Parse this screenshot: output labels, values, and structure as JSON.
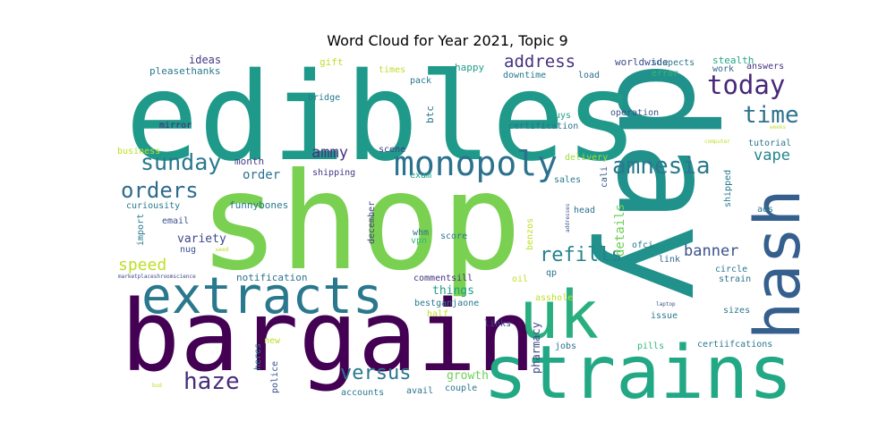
{
  "chart_data": {
    "type": "wordcloud",
    "title": "Word Cloud for Year 2021, Topic 9",
    "colormap": "viridis",
    "words": [
      {
        "text": "shop",
        "weight": 1.0,
        "color": "#7ad151",
        "orientation": "horizontal"
      },
      {
        "text": "day",
        "weight": 0.97,
        "color": "#21918c",
        "orientation": "vertical"
      },
      {
        "text": "edibles",
        "weight": 0.92,
        "color": "#1f9a8a",
        "orientation": "horizontal"
      },
      {
        "text": "bargain",
        "weight": 0.82,
        "color": "#440154",
        "orientation": "horizontal"
      },
      {
        "text": "strains",
        "weight": 0.7,
        "color": "#22a884",
        "orientation": "horizontal"
      },
      {
        "text": "uk",
        "weight": 0.64,
        "color": "#29af7f",
        "orientation": "horizontal"
      },
      {
        "text": "hash",
        "weight": 0.58,
        "color": "#355f8d",
        "orientation": "vertical"
      },
      {
        "text": "extracts",
        "weight": 0.5,
        "color": "#2a788e",
        "orientation": "horizontal"
      },
      {
        "text": "monopoly",
        "weight": 0.34,
        "color": "#2c728e",
        "orientation": "horizontal"
      },
      {
        "text": "amnesia",
        "weight": 0.24,
        "color": "#2a788e",
        "orientation": "horizontal"
      },
      {
        "text": "today",
        "weight": 0.26,
        "color": "#482878",
        "orientation": "horizontal"
      },
      {
        "text": "time",
        "weight": 0.24,
        "color": "#2c728e",
        "orientation": "horizontal"
      },
      {
        "text": "sunday",
        "weight": 0.22,
        "color": "#2a788e",
        "orientation": "horizontal"
      },
      {
        "text": "orders",
        "weight": 0.2,
        "color": "#2f6b8e",
        "orientation": "horizontal"
      },
      {
        "text": "haze",
        "weight": 0.22,
        "color": "#472d7b",
        "orientation": "horizontal"
      },
      {
        "text": "refills",
        "weight": 0.18,
        "color": "#26828e",
        "orientation": "horizontal"
      },
      {
        "text": "versus",
        "weight": 0.18,
        "color": "#2a788e",
        "orientation": "horizontal"
      },
      {
        "text": "address",
        "weight": 0.17,
        "color": "#46327e",
        "orientation": "horizontal"
      },
      {
        "text": "speed",
        "weight": 0.16,
        "color": "#bddf26",
        "orientation": "horizontal"
      },
      {
        "text": "banner",
        "weight": 0.15,
        "color": "#3b528b",
        "orientation": "horizontal"
      },
      {
        "text": "vape",
        "weight": 0.14,
        "color": "#25848e",
        "orientation": "horizontal"
      },
      {
        "text": "ammy",
        "weight": 0.14,
        "color": "#46337f",
        "orientation": "horizontal"
      },
      {
        "text": "details",
        "weight": 0.12,
        "color": "#6ece58",
        "orientation": "vertical"
      },
      {
        "text": "things",
        "weight": 0.11,
        "color": "#1f9e89",
        "orientation": "horizontal"
      },
      {
        "text": "order",
        "weight": 0.11,
        "color": "#2c728e",
        "orientation": "horizontal"
      },
      {
        "text": "growth",
        "weight": 0.1,
        "color": "#6ece58",
        "orientation": "horizontal"
      },
      {
        "text": "pharmacy",
        "weight": 0.09,
        "color": "#3e4989",
        "orientation": "vertical"
      },
      {
        "text": "month",
        "weight": 0.09,
        "color": "#433e85",
        "orientation": "horizontal"
      },
      {
        "text": "variety",
        "weight": 0.09,
        "color": "#3e4989",
        "orientation": "horizontal"
      },
      {
        "text": "ideas",
        "weight": 0.09,
        "color": "#453781",
        "orientation": "horizontal"
      },
      {
        "text": "funnybones",
        "weight": 0.08,
        "color": "#2a788e",
        "orientation": "horizontal"
      },
      {
        "text": "notification",
        "weight": 0.08,
        "color": "#2c728e",
        "orientation": "horizontal"
      },
      {
        "text": "pleasethanks",
        "weight": 0.08,
        "color": "#2a788e",
        "orientation": "horizontal"
      },
      {
        "text": "gift",
        "weight": 0.08,
        "color": "#bddf26",
        "orientation": "horizontal"
      },
      {
        "text": "happy",
        "weight": 0.08,
        "color": "#1f9e89",
        "orientation": "horizontal"
      },
      {
        "text": "worldwide",
        "weight": 0.08,
        "color": "#3e4989",
        "orientation": "horizontal"
      },
      {
        "text": "suspects",
        "weight": 0.08,
        "color": "#2a788e",
        "orientation": "horizontal"
      },
      {
        "text": "stealth",
        "weight": 0.08,
        "color": "#22a884",
        "orientation": "horizontal"
      },
      {
        "text": "answers",
        "weight": 0.08,
        "color": "#46327e",
        "orientation": "horizontal"
      },
      {
        "text": "work",
        "weight": 0.08,
        "color": "#31688e",
        "orientation": "horizontal"
      },
      {
        "text": "error",
        "weight": 0.08,
        "color": "#35b779",
        "orientation": "horizontal"
      },
      {
        "text": "load",
        "weight": 0.08,
        "color": "#2c728e",
        "orientation": "horizontal"
      },
      {
        "text": "downtime",
        "weight": 0.08,
        "color": "#2a788e",
        "orientation": "horizontal"
      },
      {
        "text": "times",
        "weight": 0.08,
        "color": "#bddf26",
        "orientation": "horizontal"
      },
      {
        "text": "pack",
        "weight": 0.08,
        "color": "#2a788e",
        "orientation": "horizontal"
      },
      {
        "text": "bridge",
        "weight": 0.08,
        "color": "#2a788e",
        "orientation": "horizontal"
      },
      {
        "text": "mirror",
        "weight": 0.08,
        "color": "#482878",
        "orientation": "horizontal"
      },
      {
        "text": "btc",
        "weight": 0.08,
        "color": "#2a788e",
        "orientation": "vertical"
      },
      {
        "text": "operation",
        "weight": 0.08,
        "color": "#3b528b",
        "orientation": "horizontal"
      },
      {
        "text": "guys",
        "weight": 0.08,
        "color": "#1f9e89",
        "orientation": "horizontal"
      },
      {
        "text": "certification",
        "weight": 0.08,
        "color": "#2c728e",
        "orientation": "horizontal"
      },
      {
        "text": "tutorial",
        "weight": 0.08,
        "color": "#2a788e",
        "orientation": "horizontal"
      },
      {
        "text": "business",
        "weight": 0.07,
        "color": "#bddf26",
        "orientation": "horizontal"
      },
      {
        "text": "scene",
        "weight": 0.07,
        "color": "#433e85",
        "orientation": "horizontal"
      },
      {
        "text": "delivery",
        "weight": 0.07,
        "color": "#a0da39",
        "orientation": "horizontal"
      },
      {
        "text": "shipping",
        "weight": 0.07,
        "color": "#443983",
        "orientation": "horizontal"
      },
      {
        "text": "exam",
        "weight": 0.07,
        "color": "#1f9e89",
        "orientation": "horizontal"
      },
      {
        "text": "sales",
        "weight": 0.07,
        "color": "#2a788e",
        "orientation": "horizontal"
      },
      {
        "text": "cali",
        "weight": 0.07,
        "color": "#39568c",
        "orientation": "vertical"
      },
      {
        "text": "shipped",
        "weight": 0.07,
        "color": "#2a788e",
        "orientation": "vertical"
      },
      {
        "text": "curiousity",
        "weight": 0.07,
        "color": "#2a788e",
        "orientation": "horizontal"
      },
      {
        "text": "email",
        "weight": 0.07,
        "color": "#3b528b",
        "orientation": "horizontal"
      },
      {
        "text": "december",
        "weight": 0.07,
        "color": "#433e85",
        "orientation": "vertical"
      },
      {
        "text": "head",
        "weight": 0.07,
        "color": "#2c728e",
        "orientation": "horizontal"
      },
      {
        "text": "ads",
        "weight": 0.07,
        "color": "#2a788e",
        "orientation": "horizontal"
      },
      {
        "text": "import",
        "weight": 0.07,
        "color": "#2a788e",
        "orientation": "vertical"
      },
      {
        "text": "whm",
        "weight": 0.07,
        "color": "#2c728e",
        "orientation": "horizontal"
      },
      {
        "text": "vpn",
        "weight": 0.07,
        "color": "#35b779",
        "orientation": "horizontal"
      },
      {
        "text": "score",
        "weight": 0.07,
        "color": "#2a788e",
        "orientation": "horizontal"
      },
      {
        "text": "benzos",
        "weight": 0.07,
        "color": "#bddf26",
        "orientation": "vertical"
      },
      {
        "text": "ofci",
        "weight": 0.07,
        "color": "#2a788e",
        "orientation": "horizontal"
      },
      {
        "text": "link",
        "weight": 0.07,
        "color": "#31688e",
        "orientation": "horizontal"
      },
      {
        "text": "nug",
        "weight": 0.07,
        "color": "#3b528b",
        "orientation": "horizontal"
      },
      {
        "text": "qp",
        "weight": 0.07,
        "color": "#2c728e",
        "orientation": "horizontal"
      },
      {
        "text": "circle",
        "weight": 0.07,
        "color": "#2a788e",
        "orientation": "horizontal"
      },
      {
        "text": "strain",
        "weight": 0.07,
        "color": "#2c728e",
        "orientation": "horizontal"
      },
      {
        "text": "commentsill",
        "weight": 0.07,
        "color": "#46337f",
        "orientation": "horizontal"
      },
      {
        "text": "oil",
        "weight": 0.07,
        "color": "#bddf26",
        "orientation": "horizontal"
      },
      {
        "text": "bestganjaone",
        "weight": 0.07,
        "color": "#2a788e",
        "orientation": "horizontal"
      },
      {
        "text": "asshole",
        "weight": 0.07,
        "color": "#bddf26",
        "orientation": "horizontal"
      },
      {
        "text": "half",
        "weight": 0.07,
        "color": "#bddf26",
        "orientation": "horizontal"
      },
      {
        "text": "sizes",
        "weight": 0.07,
        "color": "#2a788e",
        "orientation": "horizontal"
      },
      {
        "text": "issue",
        "weight": 0.07,
        "color": "#2a788e",
        "orientation": "horizontal"
      },
      {
        "text": "links",
        "weight": 0.07,
        "color": "#3e4989",
        "orientation": "horizontal"
      },
      {
        "text": "jobs",
        "weight": 0.07,
        "color": "#2c728e",
        "orientation": "horizontal"
      },
      {
        "text": "pills",
        "weight": 0.07,
        "color": "#35b779",
        "orientation": "horizontal"
      },
      {
        "text": "certiifcations",
        "weight": 0.07,
        "color": "#2a788e",
        "orientation": "horizontal"
      },
      {
        "text": "new",
        "weight": 0.07,
        "color": "#bddf26",
        "orientation": "horizontal"
      },
      {
        "text": "heres",
        "weight": 0.07,
        "color": "#2a788e",
        "orientation": "vertical"
      },
      {
        "text": "police",
        "weight": 0.07,
        "color": "#3b528b",
        "orientation": "vertical"
      },
      {
        "text": "accounts",
        "weight": 0.07,
        "color": "#2a788e",
        "orientation": "horizontal"
      },
      {
        "text": "avail",
        "weight": 0.07,
        "color": "#2c728e",
        "orientation": "horizontal"
      },
      {
        "text": "couple",
        "weight": 0.07,
        "color": "#2a788e",
        "orientation": "horizontal"
      },
      {
        "text": "weeks",
        "weight": 0.03,
        "color": "#bddf26",
        "orientation": "horizontal"
      },
      {
        "text": "computer",
        "weight": 0.03,
        "color": "#bddf26",
        "orientation": "horizontal"
      },
      {
        "text": "addresses",
        "weight": 0.03,
        "color": "#3b528b",
        "orientation": "vertical"
      },
      {
        "text": "weed",
        "weight": 0.03,
        "color": "#bddf26",
        "orientation": "horizontal"
      },
      {
        "text": "marketplaceshroomscience",
        "weight": 0.03,
        "color": "#3e4989",
        "orientation": "horizontal"
      },
      {
        "text": "laptop",
        "weight": 0.03,
        "color": "#3b528b",
        "orientation": "horizontal"
      },
      {
        "text": "bud",
        "weight": 0.03,
        "color": "#bddf26",
        "orientation": "horizontal"
      }
    ]
  }
}
